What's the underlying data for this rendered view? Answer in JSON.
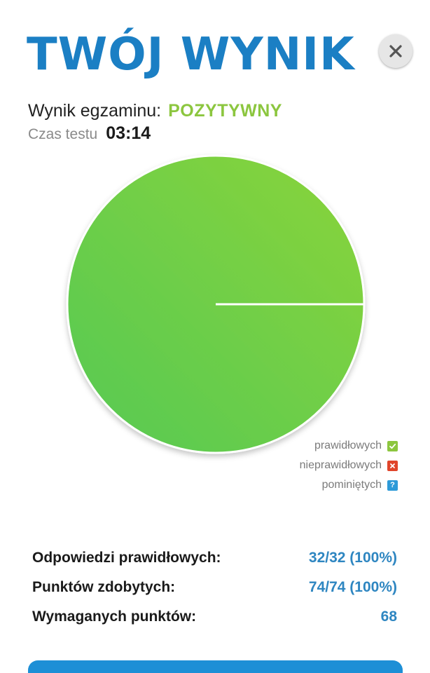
{
  "header": {
    "title": "TWÓJ WYNIK",
    "close_icon": "close-icon"
  },
  "result": {
    "label": "Wynik egzaminu:",
    "status": "POZYTYWNY",
    "status_color": "#8cc63f",
    "time_label": "Czas testu",
    "time_value": "03:14"
  },
  "chart_data": {
    "type": "pie",
    "categories": [
      "prawidłowych",
      "nieprawidłowych",
      "pominiętych"
    ],
    "values": [
      32,
      0,
      0
    ],
    "colors": [
      "#7ed23f",
      "#e0452b",
      "#2e9ad8"
    ],
    "legend_position": "bottom-right"
  },
  "legend": {
    "items": [
      {
        "label": "prawidłowych",
        "icon": "check-icon",
        "color": "#8cc63f"
      },
      {
        "label": "nieprawidłowych",
        "icon": "x-icon",
        "color": "#e0452b"
      },
      {
        "label": "pominiętych",
        "icon": "question-icon",
        "color": "#2e9ad8"
      }
    ]
  },
  "stats": {
    "correct_label": "Odpowiedzi prawidłowych:",
    "correct_value": "32/32 (100%)",
    "points_label": "Punktów zdobytych:",
    "points_value": "74/74 (100%)",
    "required_label": "Wymaganych punktów:",
    "required_value": "68"
  },
  "colors": {
    "accent": "#1b7fc4",
    "value_blue": "#2e86c1"
  }
}
